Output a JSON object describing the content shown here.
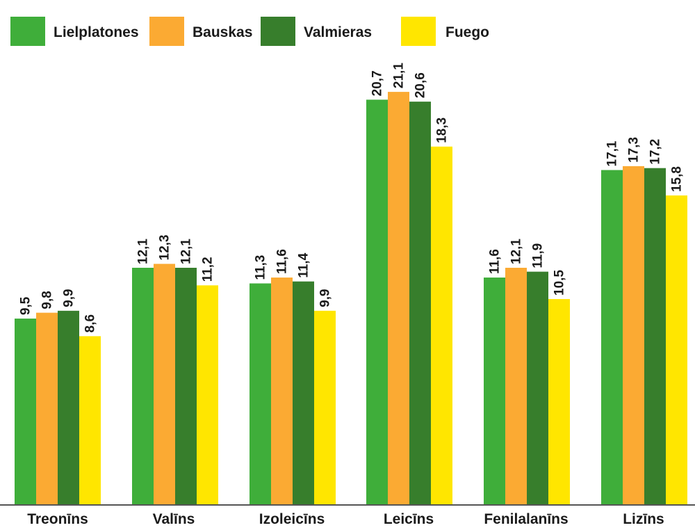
{
  "chart_data": {
    "type": "bar",
    "categories": [
      "Treonīns",
      "Valīns",
      "Izoleicīns",
      "Leicīns",
      "Fenilalanīns",
      "Lizīns"
    ],
    "series": [
      {
        "name": "Lielplatones",
        "color": "#3fae3a",
        "values": [
          9.5,
          12.1,
          11.3,
          20.7,
          11.6,
          17.1
        ],
        "labels": [
          "9,5",
          "12,1",
          "11,3",
          "20,7",
          "11,6",
          "17,1"
        ]
      },
      {
        "name": "Bauskas",
        "color": "#fbaa33",
        "values": [
          9.8,
          12.3,
          11.6,
          21.1,
          12.1,
          17.3
        ],
        "labels": [
          "9,8",
          "12,3",
          "11,6",
          "21,1",
          "12,1",
          "17,3"
        ]
      },
      {
        "name": "Valmieras",
        "color": "#377e2c",
        "values": [
          9.9,
          12.1,
          11.4,
          20.6,
          11.9,
          17.2
        ],
        "labels": [
          "9,9",
          "12,1",
          "11,4",
          "20,6",
          "11,9",
          "17,2"
        ]
      },
      {
        "name": "Fuego",
        "color": "#ffe600",
        "values": [
          8.6,
          11.2,
          9.9,
          18.3,
          10.5,
          15.8
        ],
        "labels": [
          "8,6",
          "11,2",
          "9,9",
          "18,3",
          "10,5",
          "15,8"
        ]
      }
    ],
    "title": "",
    "xlabel": "",
    "ylabel": "",
    "ylim": [
      0,
      22
    ],
    "grid": false,
    "legend_position": "top-left",
    "baseline_color": "#555555"
  }
}
